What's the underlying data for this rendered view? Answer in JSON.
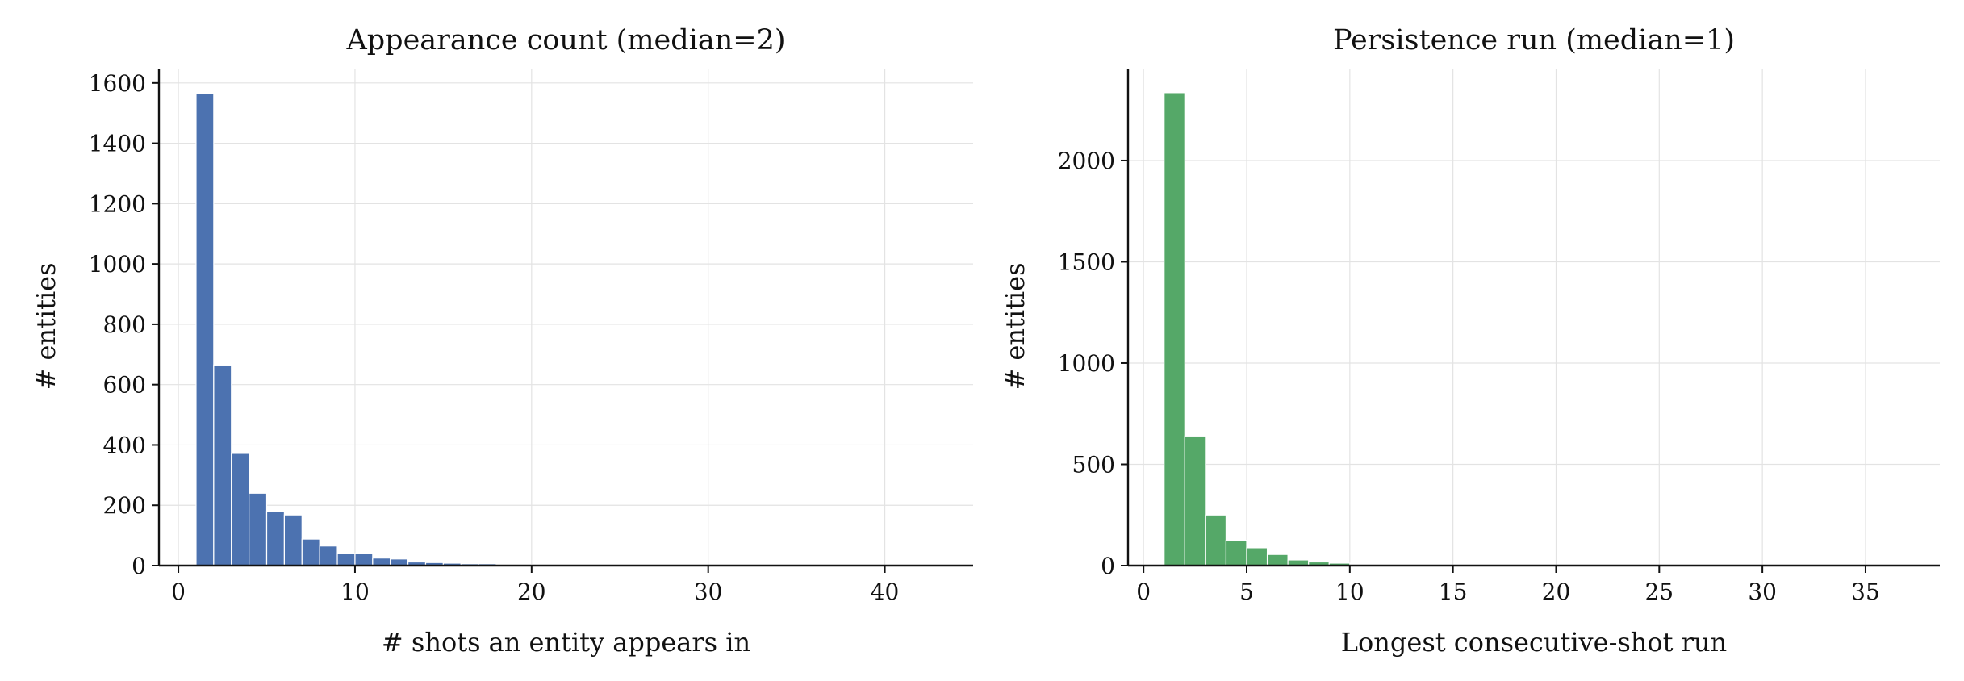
{
  "chart_data": [
    {
      "type": "bar",
      "title": "Appearance count (median=2)",
      "xlabel": "# shots an entity appears in",
      "ylabel": "# entities",
      "xlim": [
        -1.1,
        45
      ],
      "ylim": [
        0,
        1645
      ],
      "xticks": [
        0,
        10,
        20,
        30,
        40
      ],
      "yticks": [
        0,
        200,
        400,
        600,
        800,
        1000,
        1200,
        1400,
        1600
      ],
      "grid": true,
      "bin_start": 1,
      "bin_width": 1,
      "color": "#4c72b0",
      "values": [
        1565,
        665,
        372,
        240,
        180,
        168,
        88,
        65,
        40,
        40,
        25,
        22,
        12,
        10,
        8,
        6,
        6,
        4,
        3,
        3,
        2,
        2,
        4,
        2,
        1,
        1,
        1,
        1,
        1,
        0,
        1,
        0,
        0,
        0,
        0,
        0,
        0,
        0,
        0,
        0,
        0,
        1
      ]
    },
    {
      "type": "bar",
      "title": "Persistence run (median=1)",
      "xlabel": "Longest consecutive-shot run",
      "ylabel": "# entities",
      "xlim": [
        -0.75,
        38.6
      ],
      "ylim": [
        0,
        2450
      ],
      "xticks": [
        0,
        5,
        10,
        15,
        20,
        25,
        30,
        35
      ],
      "yticks": [
        0,
        500,
        1000,
        1500,
        2000
      ],
      "grid": true,
      "bin_start": 1,
      "bin_width": 1,
      "color": "#55a868",
      "values": [
        2335,
        640,
        250,
        125,
        88,
        55,
        28,
        18,
        12,
        6,
        4,
        3,
        2,
        2,
        1,
        1,
        1,
        0,
        1,
        0,
        0,
        0,
        0,
        0,
        0,
        0,
        0,
        0,
        0,
        0,
        0,
        0,
        0,
        0,
        0,
        0,
        1
      ]
    }
  ]
}
